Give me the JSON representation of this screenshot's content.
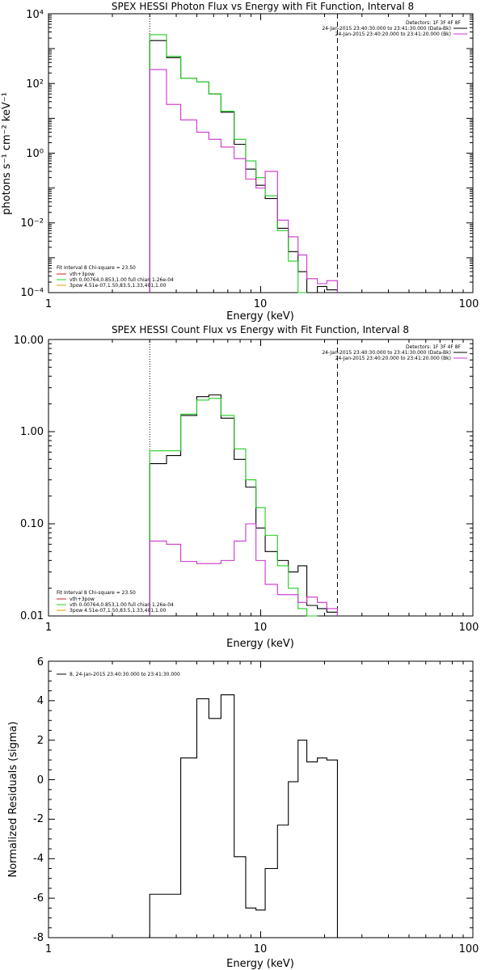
{
  "chart_data": [
    {
      "type": "line",
      "title": "SPEX HESSI Photon Flux vs Energy with Fit Function, Interval 8",
      "xlabel": "Energy (keV)",
      "ylabel": "photons s⁻¹ cm⁻² keV⁻¹",
      "xscale": "log",
      "yscale": "log",
      "xlim": [
        1,
        100
      ],
      "ylim": [
        0.0001,
        10000
      ],
      "x_ticks": [
        "1",
        "10",
        "100"
      ],
      "y_ticks": [
        "10⁻⁴",
        "10⁻²",
        "10⁰",
        "10²",
        "10⁴"
      ],
      "markers": [
        {
          "x": 3.0,
          "style": "dotted"
        },
        {
          "x": 23.0,
          "style": "dashed"
        }
      ],
      "legend_top": {
        "position": "top-right",
        "header": "Detectors: 1F 3F 4F 8F",
        "entries": [
          {
            "text": "24-Jan-2015 23:40:30.000 to 23:41:30.000 (Data-Bk)",
            "color": "#000000"
          },
          {
            "text": "24-Jan-2015 23:40:20.000 to 23:41:20.000 (Bk)",
            "color": "#cc33cc"
          }
        ]
      },
      "legend_fit": {
        "position": "bottom-left",
        "header": "Fit Interval 8   Chi-square = 23.50",
        "entries": [
          {
            "text": "vth+3pow",
            "color": "#cc2222"
          },
          {
            "text": "vth 0.00764,0.853,1.00  full chian 1.26e-04",
            "color": "#22cc22"
          },
          {
            "text": "3pow 4.51e-07,1.50,83.5,1.33,401,1.00",
            "color": "#e0a000"
          }
        ]
      },
      "step_edges": [
        3.0,
        3.6,
        4.2,
        5.0,
        5.7,
        6.5,
        7.5,
        8.5,
        9.5,
        10.5,
        12.0,
        13.5,
        15.0,
        16.5,
        18.5,
        20.5,
        23.0
      ],
      "series": [
        {
          "color": "#000000",
          "values": [
            1700,
            550,
            140,
            110,
            50,
            15,
            1.8,
            0.35,
            0.12,
            0.05,
            0.007,
            0.0015,
            0.0004,
            0.0001,
            0.00015,
            0.00012
          ]
        },
        {
          "color": "#22cc22",
          "values": [
            2500,
            600,
            140,
            110,
            50,
            16,
            2.5,
            0.6,
            0.2,
            0.06,
            0.006,
            0.0008,
            0.0001,
            null,
            null,
            null
          ]
        },
        {
          "color": "#cc33cc",
          "values": [
            250,
            25,
            9,
            4,
            2.5,
            1.5,
            0.7,
            0.18,
            0.1,
            0.3,
            0.012,
            0.004,
            0.0012,
            0.00025,
            0.00018,
            0.00022
          ]
        }
      ]
    },
    {
      "type": "line",
      "title": "SPEX HESSI Count Flux vs Energy with Fit Function, Interval 8",
      "xlabel": "Energy (keV)",
      "xscale": "log",
      "yscale": "log",
      "xlim": [
        1,
        100
      ],
      "ylim": [
        0.01,
        10
      ],
      "x_ticks": [
        "1",
        "10",
        "100"
      ],
      "y_ticks": [
        "0.01",
        "0.10",
        "1.00",
        "10.00"
      ],
      "markers": [
        {
          "x": 3.0,
          "style": "dotted"
        },
        {
          "x": 23.0,
          "style": "dashed"
        }
      ],
      "legend_top": {
        "position": "top-right",
        "header": "Detectors: 1F 3F 4F 8F",
        "entries": [
          {
            "text": "24-Jan-2015 23:40:30.000 to 23:41:30.000 (Data-Bk)",
            "color": "#000000"
          },
          {
            "text": "24-Jan-2015 23:40:20.000 to 23:41:20.000 (Bk)",
            "color": "#cc33cc"
          }
        ]
      },
      "legend_fit": {
        "position": "bottom-left",
        "header": "Fit Interval 8   Chi-square = 23.50",
        "entries": [
          {
            "text": "vth+3pow",
            "color": "#cc2222"
          },
          {
            "text": "vth 0.00764,0.853,1.00  full chian 1.26e-04",
            "color": "#22cc22"
          },
          {
            "text": "3pow 4.51e-07,1.50,83.5,1.33,401,1.00",
            "color": "#e0a000"
          }
        ]
      },
      "step_edges": [
        3.0,
        3.6,
        4.2,
        5.0,
        5.7,
        6.5,
        7.5,
        8.5,
        9.5,
        10.5,
        12.0,
        13.5,
        15.0,
        16.5,
        18.5,
        20.5,
        23.0
      ],
      "series": [
        {
          "color": "#000000",
          "values": [
            0.45,
            0.55,
            1.5,
            2.4,
            2.5,
            1.4,
            0.5,
            0.25,
            0.09,
            0.05,
            0.04,
            0.03,
            0.035,
            0.013,
            0.012,
            0.011
          ]
        },
        {
          "color": "#22cc22",
          "values": [
            0.62,
            0.62,
            1.55,
            2.2,
            2.3,
            1.5,
            0.65,
            0.3,
            0.15,
            0.075,
            0.035,
            0.02,
            0.012,
            0.01,
            null,
            null
          ]
        },
        {
          "color": "#cc33cc",
          "values": [
            0.065,
            0.06,
            0.039,
            0.037,
            0.037,
            0.04,
            0.065,
            0.1,
            0.04,
            0.022,
            0.017,
            0.017,
            0.014,
            0.016,
            0.014,
            0.012
          ]
        }
      ]
    },
    {
      "type": "line",
      "xlabel": "Energy (keV)",
      "ylabel": "Normalized Residuals (sigma)",
      "xscale": "log",
      "xlim": [
        1,
        100
      ],
      "ylim": [
        -8,
        6
      ],
      "x_ticks": [
        "1",
        "10",
        "100"
      ],
      "y_ticks": [
        "-8",
        "-6",
        "-4",
        "-2",
        "0",
        "2",
        "4",
        "6"
      ],
      "legend": {
        "position": "top-left",
        "entries": [
          {
            "text": "8, 24-Jan-2015 23:40:30.000 to 23:41:30.000",
            "color": "#000000"
          }
        ]
      },
      "step_edges": [
        3.0,
        3.6,
        4.2,
        5.0,
        5.7,
        6.5,
        7.5,
        8.5,
        9.5,
        10.5,
        12.0,
        13.5,
        15.0,
        16.5,
        18.5,
        20.5,
        23.0
      ],
      "series": [
        {
          "color": "#000000",
          "values": [
            -5.8,
            -5.8,
            1.1,
            4.1,
            3.1,
            4.3,
            -3.9,
            -6.5,
            -6.6,
            -4.5,
            -2.3,
            -0.1,
            2.0,
            0.9,
            1.1,
            1.0
          ]
        }
      ]
    }
  ]
}
